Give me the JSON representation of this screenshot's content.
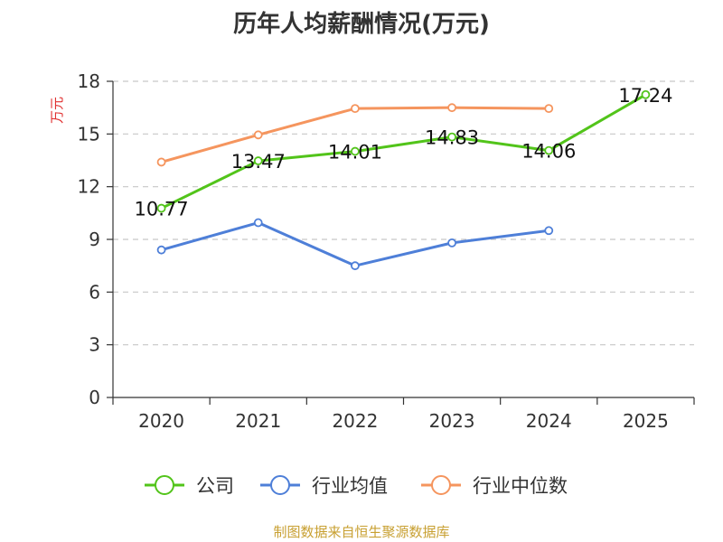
{
  "chart_data": {
    "type": "line",
    "title": "历年人均薪酬情况(万元)",
    "ylabel": "万元",
    "xlabel": "",
    "categories": [
      "2020",
      "2021",
      "2022",
      "2023",
      "2024",
      "2025"
    ],
    "ylim": [
      0,
      18
    ],
    "yticks": [
      0,
      3,
      6,
      9,
      12,
      15,
      18
    ],
    "grid": true,
    "legend_position": "bottom",
    "series": [
      {
        "name": "公司",
        "color": "#52c41a",
        "values": [
          10.77,
          13.47,
          14.01,
          14.83,
          14.06,
          17.24
        ],
        "labels": [
          "10.77",
          "13.47",
          "14.01",
          "14.83",
          "14.06",
          "17.24"
        ]
      },
      {
        "name": "行业均值",
        "color": "#4e7fd8",
        "values": [
          8.4,
          9.95,
          7.5,
          8.8,
          9.5,
          null
        ]
      },
      {
        "name": "行业中位数",
        "color": "#f5955e",
        "values": [
          13.4,
          14.95,
          16.45,
          16.5,
          16.45,
          null
        ]
      }
    ]
  },
  "footer": {
    "source": "制图数据来自恒生聚源数据库"
  }
}
